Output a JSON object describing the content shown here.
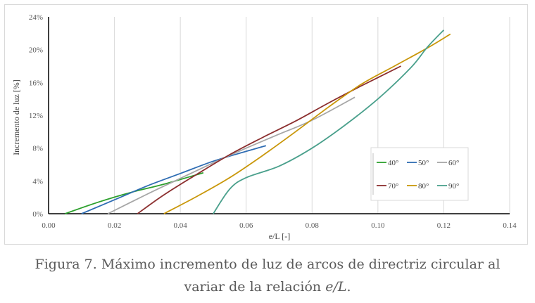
{
  "chart_data": {
    "type": "line",
    "title": "",
    "xlabel": "e/L [-]",
    "ylabel": "Incremento de luz [%]",
    "xlim": [
      0,
      0.14
    ],
    "ylim": [
      0,
      24
    ],
    "x_ticks": [
      "0.00",
      "0.02",
      "0.04",
      "0.06",
      "0.08",
      "0.10",
      "0.12",
      "0.14"
    ],
    "y_ticks": [
      "0%",
      "4%",
      "8%",
      "12%",
      "16%",
      "20%",
      "24%"
    ],
    "grid": "vertical",
    "legend_position": "right",
    "series": [
      {
        "name": "40°",
        "color": "#2ca02c",
        "points": [
          [
            0.005,
            0
          ],
          [
            0.015,
            1.4
          ],
          [
            0.025,
            2.6
          ],
          [
            0.035,
            3.6
          ],
          [
            0.047,
            5.0
          ]
        ]
      },
      {
        "name": "50°",
        "color": "#2f6db3",
        "points": [
          [
            0.01,
            0
          ],
          [
            0.02,
            1.7
          ],
          [
            0.03,
            3.4
          ],
          [
            0.04,
            4.9
          ],
          [
            0.05,
            6.4
          ],
          [
            0.06,
            7.6
          ],
          [
            0.066,
            8.3
          ]
        ]
      },
      {
        "name": "60°",
        "color": "#a6a6a6",
        "points": [
          [
            0.018,
            0
          ],
          [
            0.03,
            2.4
          ],
          [
            0.04,
            4.3
          ],
          [
            0.05,
            6.2
          ],
          [
            0.06,
            8.0
          ],
          [
            0.07,
            9.7
          ],
          [
            0.08,
            11.4
          ],
          [
            0.093,
            14.2
          ]
        ]
      },
      {
        "name": "70°",
        "color": "#8b2e2e",
        "points": [
          [
            0.027,
            0
          ],
          [
            0.035,
            2.3
          ],
          [
            0.045,
            4.8
          ],
          [
            0.055,
            7.2
          ],
          [
            0.065,
            9.3
          ],
          [
            0.075,
            11.3
          ],
          [
            0.085,
            13.5
          ],
          [
            0.095,
            15.6
          ],
          [
            0.107,
            18.0
          ]
        ]
      },
      {
        "name": "80°",
        "color": "#c9970a",
        "points": [
          [
            0.035,
            0
          ],
          [
            0.045,
            2.1
          ],
          [
            0.055,
            4.4
          ],
          [
            0.065,
            7.1
          ],
          [
            0.075,
            10.0
          ],
          [
            0.085,
            13.0
          ],
          [
            0.095,
            15.8
          ],
          [
            0.105,
            18.0
          ],
          [
            0.115,
            20.2
          ],
          [
            0.122,
            21.9
          ]
        ]
      },
      {
        "name": "90°",
        "color": "#4aa08c",
        "points": [
          [
            0.05,
            0
          ],
          [
            0.055,
            3.0
          ],
          [
            0.06,
            4.4
          ],
          [
            0.07,
            5.8
          ],
          [
            0.08,
            8.0
          ],
          [
            0.09,
            10.8
          ],
          [
            0.1,
            14.0
          ],
          [
            0.11,
            17.8
          ],
          [
            0.115,
            20.3
          ],
          [
            0.12,
            22.4
          ]
        ]
      }
    ]
  },
  "caption": {
    "line1": "Figura 7. Máximo incremento de luz de arcos de directriz circular al",
    "line2_prefix": "variar de la relación ",
    "line2_math": "e/L",
    "line2_suffix": "."
  }
}
